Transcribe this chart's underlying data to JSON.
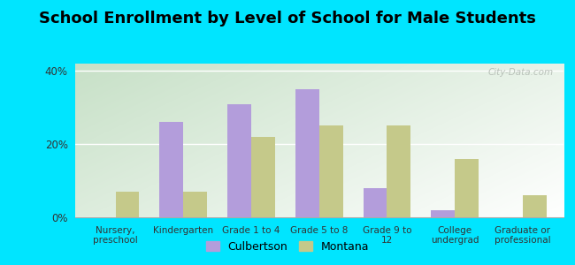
{
  "title": "School Enrollment by Level of School for Male Students",
  "categories": [
    "Nursery,\npreschool",
    "Kindergarten",
    "Grade 1 to 4",
    "Grade 5 to 8",
    "Grade 9 to\n12",
    "College\nundergrad",
    "Graduate or\nprofessional"
  ],
  "culbertson": [
    0,
    26,
    31,
    35,
    8,
    2,
    0
  ],
  "montana": [
    7,
    7,
    22,
    25,
    25,
    16,
    6
  ],
  "culbertson_color": "#b39ddb",
  "montana_color": "#c5c98a",
  "background_outer": "#00e5ff",
  "ylim": [
    0,
    42
  ],
  "yticks": [
    0,
    20,
    40
  ],
  "ytick_labels": [
    "0%",
    "20%",
    "40%"
  ],
  "legend_culbertson": "Culbertson",
  "legend_montana": "Montana",
  "title_fontsize": 13,
  "bar_width": 0.35,
  "watermark": "City-Data.com"
}
